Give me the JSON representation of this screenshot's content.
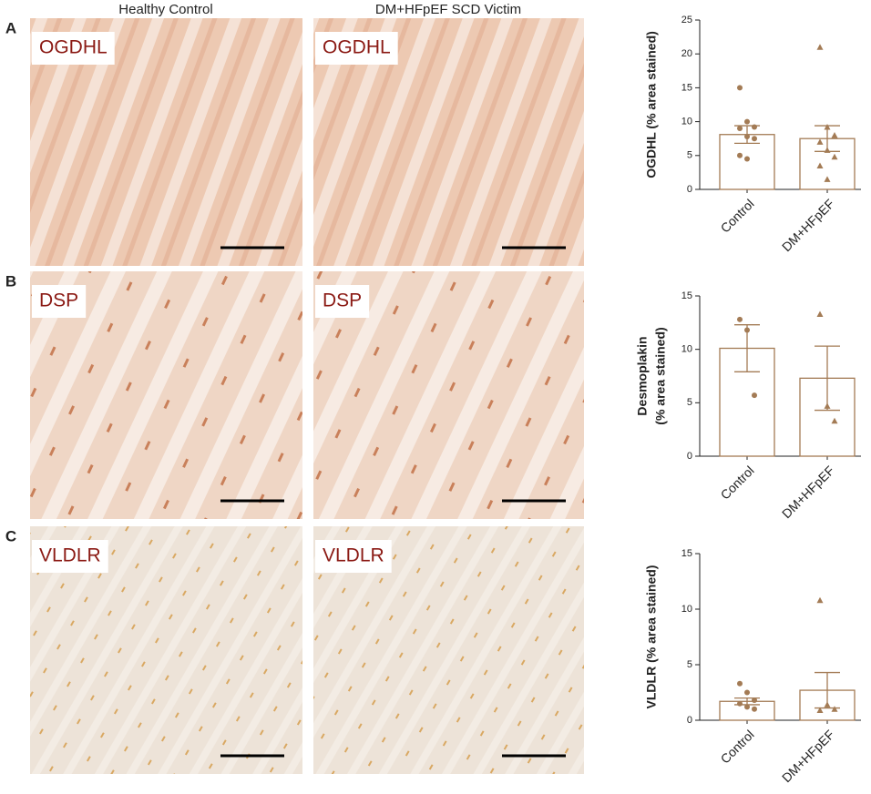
{
  "figure": {
    "column_headers": [
      "Healthy Control",
      "DM+HFpEF SCD Victim"
    ],
    "panels": [
      {
        "letter": "A",
        "stain": "OGDHL"
      },
      {
        "letter": "B",
        "stain": "DSP"
      },
      {
        "letter": "C",
        "stain": "VLDLR"
      }
    ]
  },
  "chart_data": [
    {
      "type": "bar",
      "ylabel": [
        "OGDHL (% area stained)"
      ],
      "categories": [
        "Control",
        "DM+HFpEF"
      ],
      "values": [
        8.1,
        7.5
      ],
      "errors": [
        1.3,
        1.9
      ],
      "points": [
        [
          15,
          10,
          9.2,
          9,
          7.8,
          7.5,
          5,
          4.5
        ],
        [
          21,
          9.2,
          8,
          7,
          5.8,
          4.8,
          3.5,
          1.5
        ]
      ],
      "markers": [
        "circle",
        "triangle"
      ],
      "color": "#a37b55",
      "ylim": [
        0,
        25
      ],
      "yticks": [
        0,
        5,
        10,
        15,
        20,
        25
      ]
    },
    {
      "type": "bar",
      "ylabel": [
        "Desmoplakin",
        "(% area stained)"
      ],
      "categories": [
        "Control",
        "DM+HFpEF"
      ],
      "values": [
        10.1,
        7.3
      ],
      "errors": [
        2.2,
        3.0
      ],
      "points": [
        [
          12.8,
          11.8,
          5.7
        ],
        [
          13.3,
          4.7,
          3.3
        ]
      ],
      "markers": [
        "circle",
        "triangle"
      ],
      "color": "#a37b55",
      "ylim": [
        0,
        15
      ],
      "yticks": [
        0,
        5,
        10,
        15
      ]
    },
    {
      "type": "bar",
      "ylabel": [
        "VLDLR (% area stained)"
      ],
      "categories": [
        "Control",
        "DM+HFpEF"
      ],
      "values": [
        1.7,
        2.7
      ],
      "errors": [
        0.3,
        1.6
      ],
      "points": [
        [
          3.3,
          2.5,
          1.8,
          1.5,
          1.2,
          1.0
        ],
        [
          10.8,
          1.4,
          1.0,
          0.9
        ]
      ],
      "markers": [
        "circle",
        "triangle"
      ],
      "color": "#a37b55",
      "ylim": [
        0,
        15
      ],
      "yticks": [
        0,
        5,
        10,
        15
      ]
    }
  ]
}
